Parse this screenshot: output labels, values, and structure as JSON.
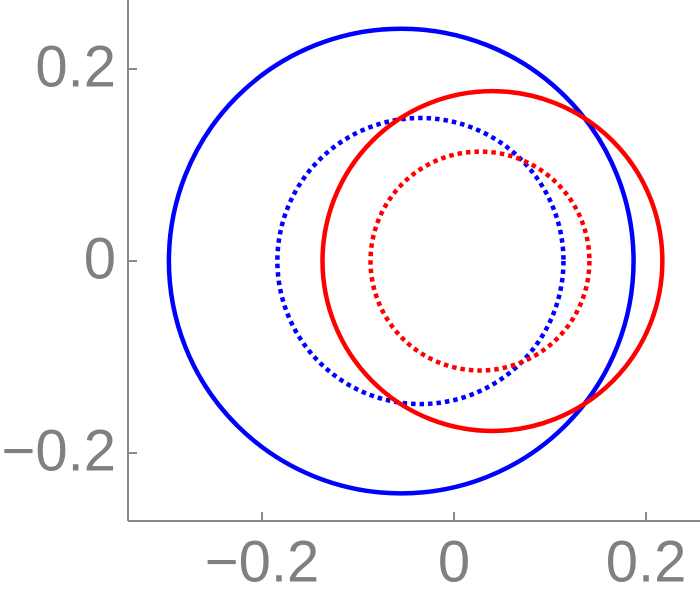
{
  "chart_data": {
    "type": "circle",
    "xlim": [
      -0.3396,
      0.2562
    ],
    "ylim": [
      -0.2708,
      0.2719
    ],
    "xticks": [
      {
        "value": -0.2,
        "label": "−0.2"
      },
      0,
      0.2
    ],
    "yticks": [
      {
        "value": -0.2,
        "label": "−0.2"
      },
      0,
      0.2
    ],
    "series": [
      {
        "color": "#0000ff",
        "style": "solid",
        "cx": -0.055,
        "cy": 0,
        "r": 0.242
      },
      {
        "color": "#0000ff",
        "style": "dotted",
        "cx": -0.035,
        "cy": 0,
        "r": 0.149
      },
      {
        "color": "#ff0000",
        "style": "solid",
        "cx": 0.04,
        "cy": 0,
        "r": 0.177
      },
      {
        "color": "#ff0000",
        "style": "dotted",
        "cx": 0.027,
        "cy": 0,
        "r": 0.114
      }
    ]
  }
}
